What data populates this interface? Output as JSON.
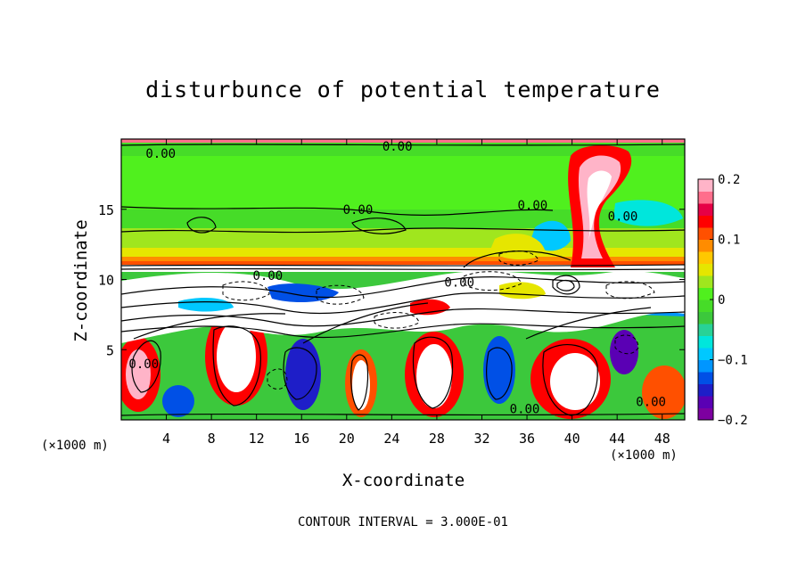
{
  "chart_data": {
    "type": "heatmap",
    "title": "disturbunce of potential temperature",
    "xlabel": "X-coordinate",
    "ylabel": "Z-coordinate",
    "x_unit_left": "(×1000 m)",
    "x_unit_right": "(×1000 m)",
    "footnote": "CONTOUR INTERVAL = 3.000E-01",
    "xlim": [
      0,
      50
    ],
    "ylim": [
      0,
      20
    ],
    "x_ticks": [
      4,
      8,
      12,
      16,
      20,
      24,
      28,
      32,
      36,
      40,
      44,
      48
    ],
    "y_ticks": [
      5,
      10,
      15
    ],
    "colorbar": {
      "min": -0.2,
      "max": 0.2,
      "ticks": [
        0.2,
        0.1,
        0,
        -0.1,
        -0.2
      ],
      "tick_labels": [
        "0.2",
        "0.1",
        "0",
        "−0.1",
        "−0.2"
      ],
      "colors": [
        "#7d00a0",
        "#5a00b4",
        "#1e1ec8",
        "#0050e6",
        "#0096ff",
        "#00c8ff",
        "#00e6dc",
        "#28d296",
        "#3cc83c",
        "#46dc28",
        "#50f01e",
        "#a0e61e",
        "#e6e600",
        "#ffc800",
        "#ff8c00",
        "#ff5000",
        "#ff0000",
        "#e60046",
        "#ff6e8c",
        "#ffb4c8"
      ]
    },
    "contour_labels": [
      {
        "x": 3.5,
        "z": 19.0,
        "text": "0.00"
      },
      {
        "x": 24.5,
        "z": 19.5,
        "text": "0.00"
      },
      {
        "x": 21.0,
        "z": 15.0,
        "text": "0.00"
      },
      {
        "x": 36.5,
        "z": 15.3,
        "text": "0.00"
      },
      {
        "x": 44.5,
        "z": 14.5,
        "text": "0.00"
      },
      {
        "x": 13.0,
        "z": 10.3,
        "text": "0.00"
      },
      {
        "x": 30.0,
        "z": 9.8,
        "text": "0.00"
      },
      {
        "x": 2.0,
        "z": 4.0,
        "text": "0.00"
      },
      {
        "x": 35.8,
        "z": 0.8,
        "text": "0.00"
      },
      {
        "x": 47.0,
        "z": 1.3,
        "text": "0.00"
      }
    ]
  }
}
